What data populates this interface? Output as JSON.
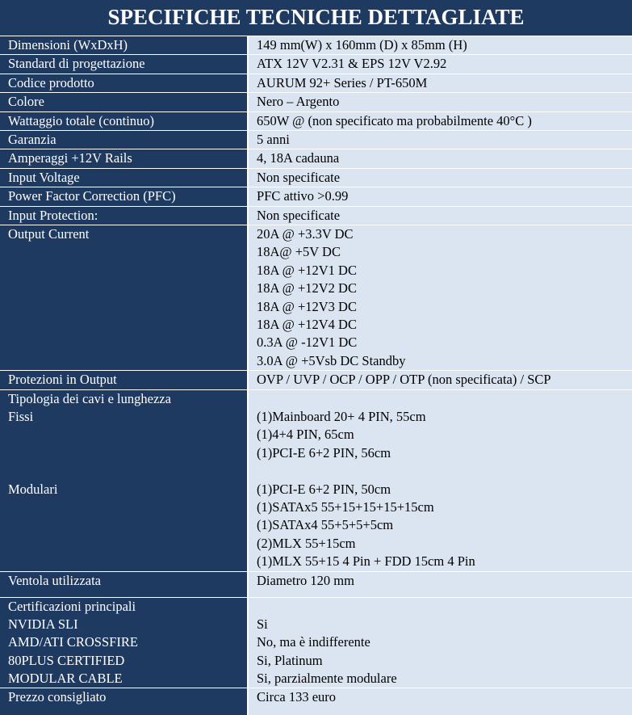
{
  "title": "SPECIFICHE TECNICHE DETTAGLIATE",
  "colors": {
    "header_bg": "#1f3a60",
    "value_bg": "#dbe5f1",
    "label_text": "#ffffff"
  },
  "rows": [
    {
      "label": "Dimensioni (WxDxH)",
      "value": "149 mm(W)  x 160mm (D) x 85mm (H)"
    },
    {
      "label": "Standard di progettazione",
      "value": "ATX 12V V2.31 & EPS 12V V2.92"
    },
    {
      "label": "Codice prodotto",
      "value": "AURUM 92+ Series / PT-650M"
    },
    {
      "label": "Colore",
      "value": "Nero – Argento"
    },
    {
      "label": "Wattaggio totale (continuo)",
      "value": "650W @ (non specificato ma probabilmente 40°C )"
    },
    {
      "label": "Garanzia",
      "value": "5 anni"
    },
    {
      "label": "Amperaggi +12V Rails",
      "value": "4, 18A cadauna"
    },
    {
      "label": "Input Voltage",
      "value": "Non specificate"
    },
    {
      "label": "Power Factor Correction (PFC)",
      "value": "PFC attivo >0.99"
    },
    {
      "label": "Input Protection:",
      "value": "Non specificate"
    }
  ],
  "output_current": {
    "label": "Output Current",
    "values": [
      "20A @ +3.3V DC",
      "18A@ +5V DC",
      "18A @ +12V1 DC",
      "18A @ +12V2 DC",
      "18A @ +12V3 DC",
      "18A @ +12V4 DC",
      "0.3A @ -12V1 DC",
      "3.0A @ +5Vsb DC Standby"
    ]
  },
  "protections": {
    "label": "Protezioni in Output",
    "value": "OVP / UVP / OCP / OPP / OTP (non specificata) / SCP"
  },
  "cables": {
    "label": "Tipologia dei cavi e lunghezza",
    "fixed_label": "Fissi",
    "fixed": [
      "(1)Mainboard 20+ 4 PIN, 55cm",
      "(1)4+4 PIN, 65cm",
      "(1)PCI-E 6+2 PIN, 56cm"
    ],
    "modular_label": "Modulari",
    "modular": [
      "(1)PCI-E 6+2 PIN, 50cm",
      "(1)SATAx5 55+15+15+15+15cm",
      "(1)SATAx4 55+5+5+5cm",
      "(2)MLX 55+15cm",
      "(1)MLX 55+15 4 Pin  + FDD 15cm 4 Pin"
    ]
  },
  "fan": {
    "label": "Ventola utilizzata",
    "value": "Diametro 120 mm"
  },
  "certifications": {
    "label": "Certificazioni principali",
    "items": [
      {
        "label": "NVIDIA SLI",
        "value": "Si"
      },
      {
        "label": "AMD/ATI CROSSFIRE",
        "value": "No, ma è indifferente"
      },
      {
        "label": "80PLUS CERTIFIED",
        "value": "Si, Platinum"
      },
      {
        "label": "MODULAR CABLE",
        "value": "Si, parzialmente modulare"
      }
    ]
  },
  "price": {
    "label": "Prezzo consigliato",
    "value": "Circa 133 euro"
  }
}
